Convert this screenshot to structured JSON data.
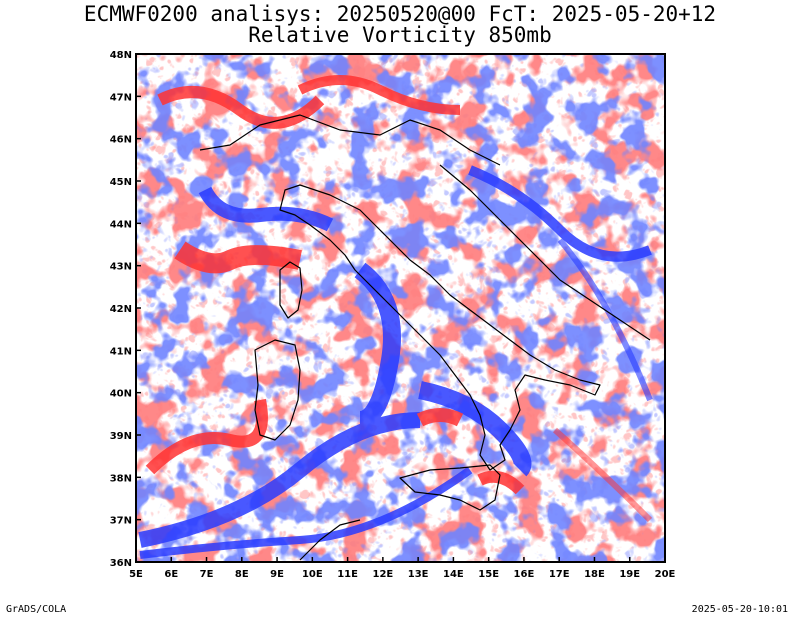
{
  "title_line1": "ECMWF0200 analisys: 20250520@00 FcT: 2025-05-20+12",
  "title_line2": "Relative Vorticity 850mb",
  "footer_left": "GrADS/COLA",
  "footer_right": "2025-05-20-10:01",
  "map": {
    "lon_range": [
      5,
      20
    ],
    "lat_range": [
      36,
      48
    ],
    "lon_labels": [
      "5E",
      "6E",
      "7E",
      "8E",
      "9E",
      "10E",
      "11E",
      "12E",
      "13E",
      "14E",
      "15E",
      "16E",
      "17E",
      "18E",
      "19E",
      "20E"
    ],
    "lat_labels": [
      "36N",
      "37N",
      "38N",
      "39N",
      "40N",
      "41N",
      "42N",
      "43N",
      "44N",
      "45N",
      "46N",
      "47N",
      "48N"
    ],
    "colors": {
      "positive_vorticity": "#ff3333",
      "negative_vorticity": "#2a3cff",
      "coastline": "#000000"
    }
  }
}
